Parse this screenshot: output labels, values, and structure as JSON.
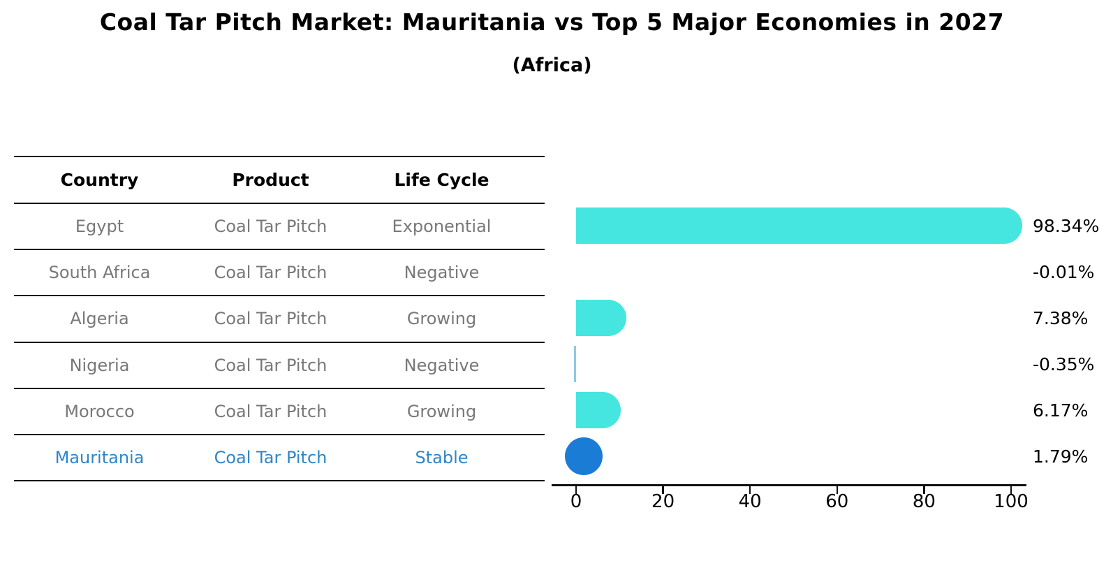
{
  "title": "Coal Tar Pitch Market: Mauritania vs Top 5 Major Economies in 2027",
  "subtitle": "(Africa)",
  "table": {
    "headers": [
      "Country",
      "Product",
      "Life Cycle"
    ],
    "rows": [
      {
        "country": "Egypt",
        "product": "Coal Tar Pitch",
        "life_cycle": "Exponential"
      },
      {
        "country": "South Africa",
        "product": "Coal Tar Pitch",
        "life_cycle": "Negative"
      },
      {
        "country": "Algeria",
        "product": "Coal Tar Pitch",
        "life_cycle": "Growing"
      },
      {
        "country": "Nigeria",
        "product": "Coal Tar Pitch",
        "life_cycle": "Negative"
      },
      {
        "country": "Morocco",
        "product": "Coal Tar Pitch",
        "life_cycle": "Growing"
      },
      {
        "country": "Mauritania",
        "product": "Coal Tar Pitch",
        "life_cycle": "Stable"
      }
    ]
  },
  "chart_data": {
    "type": "bar",
    "orientation": "horizontal",
    "title": "Coal Tar Pitch Market: Mauritania vs Top 5 Major Economies in 2027",
    "subtitle": "(Africa)",
    "categories": [
      "Egypt",
      "South Africa",
      "Algeria",
      "Nigeria",
      "Morocco",
      "Mauritania"
    ],
    "values": [
      98.34,
      -0.01,
      7.38,
      -0.35,
      6.17,
      1.79
    ],
    "value_labels": [
      "98.34%",
      "-0.01%",
      "7.38%",
      "-0.35%",
      "6.17%",
      "1.79%"
    ],
    "xticks": [
      0,
      20,
      40,
      60,
      80,
      100
    ],
    "xlim": [
      -6,
      104
    ],
    "xlabel": "",
    "ylabel": "",
    "grid": false,
    "legend": false,
    "highlight_index": 5,
    "bar_color": "#45e6df",
    "highlight_color": "#1b7cd6",
    "negative_bar_color": "#8fc9e9"
  },
  "colors": {
    "muted_text": "#787878",
    "header_text": "#000000",
    "highlight_text": "#2e86c9",
    "axis": "#111111"
  }
}
